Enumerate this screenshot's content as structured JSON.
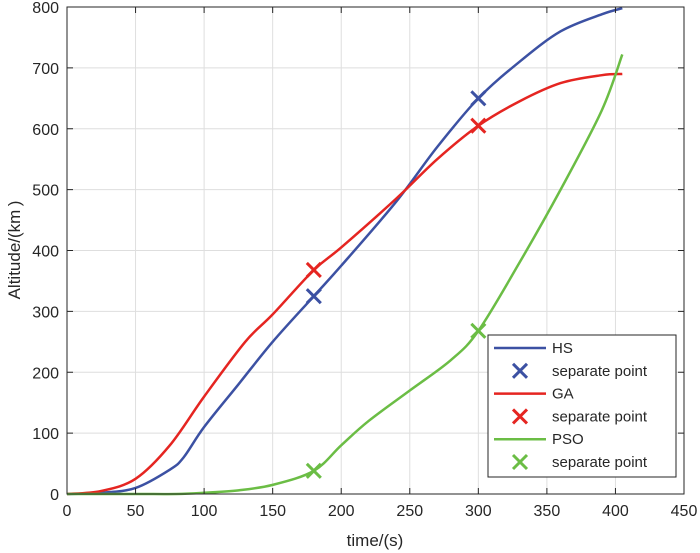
{
  "chart_data": {
    "type": "line",
    "title": "",
    "xlabel": "time/(s)",
    "ylabel": "Altitude/(km\t)",
    "xlim": [
      0,
      450
    ],
    "ylim": [
      0,
      800
    ],
    "xticks": [
      0,
      50,
      100,
      150,
      200,
      250,
      300,
      350,
      400,
      450
    ],
    "yticks": [
      0,
      100,
      200,
      300,
      400,
      500,
      600,
      700,
      800
    ],
    "grid": true,
    "legend_position": "lower right",
    "series": [
      {
        "name": "HS",
        "color": "#3c51a3",
        "x": [
          0,
          25,
          50,
          75,
          85,
          100,
          125,
          150,
          180,
          200,
          240,
          270,
          300,
          330,
          360,
          390,
          405
        ],
        "values": [
          0,
          2,
          10,
          40,
          60,
          110,
          180,
          250,
          325,
          375,
          480,
          570,
          650,
          710,
          760,
          788,
          798
        ],
        "markers": {
          "name": "separate point",
          "x": [
            180,
            300
          ],
          "y": [
            325,
            650
          ]
        }
      },
      {
        "name": "GA",
        "color": "#e52521",
        "x": [
          0,
          25,
          50,
          75,
          100,
          130,
          150,
          180,
          200,
          240,
          270,
          300,
          330,
          360,
          390,
          405
        ],
        "values": [
          0,
          5,
          25,
          80,
          160,
          250,
          295,
          368,
          405,
          485,
          550,
          605,
          645,
          675,
          688,
          690
        ],
        "markers": {
          "name": "separate point",
          "x": [
            180,
            300
          ],
          "y": [
            368,
            605
          ]
        }
      },
      {
        "name": "PSO",
        "color": "#6bbd45",
        "x": [
          0,
          50,
          80,
          100,
          125,
          150,
          180,
          200,
          220,
          250,
          280,
          300,
          330,
          360,
          390,
          405
        ],
        "values": [
          0,
          0,
          0,
          2,
          6,
          15,
          38,
          80,
          120,
          170,
          220,
          268,
          380,
          500,
          630,
          722
        ],
        "markers": {
          "name": "separate point",
          "x": [
            180,
            300
          ],
          "y": [
            38,
            268
          ]
        }
      }
    ],
    "legend": [
      {
        "label": "HS",
        "kind": "line",
        "color": "#3c51a3"
      },
      {
        "label": "separate point",
        "kind": "marker",
        "color": "#3c51a3"
      },
      {
        "label": "GA",
        "kind": "line",
        "color": "#e52521"
      },
      {
        "label": "separate point",
        "kind": "marker",
        "color": "#e52521"
      },
      {
        "label": "PSO",
        "kind": "line",
        "color": "#6bbd45"
      },
      {
        "label": "separate point",
        "kind": "marker",
        "color": "#6bbd45"
      }
    ]
  },
  "labels": {
    "xlabel": "time/(s)",
    "ylabel": "Altitude/(km )"
  }
}
